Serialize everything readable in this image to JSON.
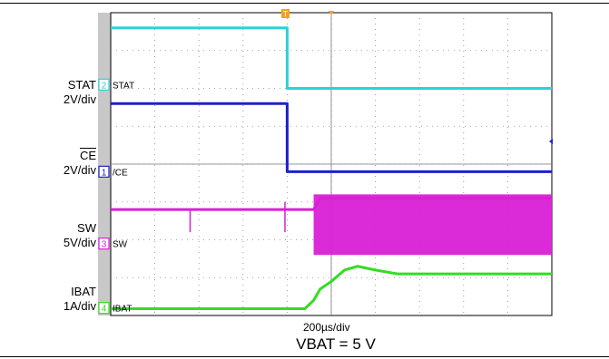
{
  "chart_data": {
    "type": "line",
    "title": "",
    "time_scale_label": "200µs/div",
    "note": "VBAT = 5 V",
    "trigger_marker": "T",
    "grid": true,
    "divisions": {
      "x": 10,
      "y": 8
    },
    "x_unit": "div",
    "channels": [
      {
        "id": "2",
        "name": "STAT",
        "marker_label": "STAT",
        "scale": "2V/div",
        "color": "#2fd0d8",
        "points": [
          [
            0,
            7.6
          ],
          [
            4.0,
            7.6
          ],
          [
            4.0,
            6.0
          ],
          [
            10.0,
            6.0
          ]
        ]
      },
      {
        "id": "1",
        "name": "CE",
        "marker_label": "/CE",
        "scale": "2V/div",
        "color": "#1a22c8",
        "points": [
          [
            0,
            5.6
          ],
          [
            4.0,
            5.6
          ],
          [
            4.0,
            3.8
          ],
          [
            10.0,
            3.8
          ]
        ]
      },
      {
        "id": "3",
        "name": "SW",
        "marker_label": "SW",
        "scale": "5V/div",
        "color": "#d91fd6",
        "points": [
          [
            0,
            2.8
          ],
          [
            4.6,
            2.8
          ],
          [
            4.75,
            3.1
          ],
          [
            10.0,
            3.1
          ]
        ],
        "switching_band": {
          "from": 4.6,
          "to": 10.0,
          "high": 3.2,
          "low": 1.6
        }
      },
      {
        "id": "4",
        "name": "IBAT",
        "marker_label": "IBAT",
        "scale": "1A/div",
        "color": "#33dd22",
        "points": [
          [
            0,
            0.18
          ],
          [
            4.4,
            0.18
          ],
          [
            4.6,
            0.4
          ],
          [
            4.75,
            0.7
          ],
          [
            5.0,
            0.9
          ],
          [
            5.3,
            1.2
          ],
          [
            5.6,
            1.3
          ],
          [
            6.0,
            1.2
          ],
          [
            6.5,
            1.1
          ],
          [
            10.0,
            1.1
          ]
        ]
      }
    ]
  },
  "labels": {
    "stat_name": "STAT",
    "stat_scale": "2V/div",
    "ce_name": "CE",
    "ce_scale": "2V/div",
    "sw_name": "SW",
    "sw_scale": "5V/div",
    "ibat_name": "IBAT",
    "ibat_scale": "1A/div"
  }
}
